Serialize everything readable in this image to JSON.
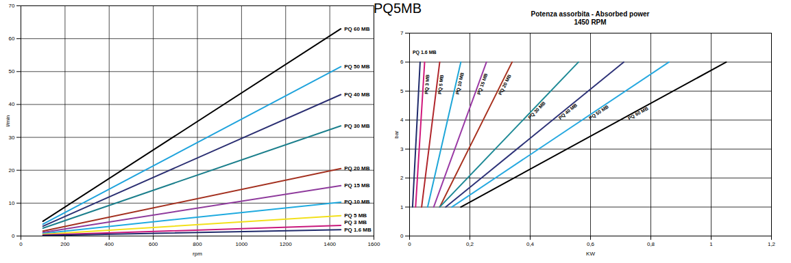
{
  "title": "PQ5MB",
  "chart_data": [
    {
      "type": "line",
      "xlabel": "rpm",
      "ylabel": "l/min",
      "xlim": [
        0,
        1600
      ],
      "xticks": [
        0,
        200,
        400,
        600,
        800,
        1000,
        1200,
        1400,
        1600
      ],
      "ylim": [
        0,
        70
      ],
      "yticks": [
        0,
        10,
        20,
        30,
        40,
        50,
        60,
        70
      ],
      "grid": true,
      "x": [
        100,
        1450
      ],
      "series": [
        {
          "name": "PQ 60 MB",
          "color": "#000000",
          "values": [
            4.5,
            63
          ]
        },
        {
          "name": "PQ 50 MB",
          "color": "#1fa3dc",
          "values": [
            3.6,
            51.5
          ]
        },
        {
          "name": "PQ 40 MB",
          "color": "#2b2f72",
          "values": [
            3.0,
            43
          ]
        },
        {
          "name": "PQ 30 MB",
          "color": "#1b7f8c",
          "values": [
            2.4,
            33.5
          ]
        },
        {
          "name": "PQ 20 MB",
          "color": "#a3301f",
          "values": [
            1.5,
            20.5
          ]
        },
        {
          "name": "PQ 15 MB",
          "color": "#8e3a9c",
          "values": [
            1.1,
            15.3
          ]
        },
        {
          "name": "PQ 10 MB",
          "color": "#1eaadf",
          "values": [
            0.8,
            10.3
          ]
        },
        {
          "name": "PQ 5 MB",
          "color": "#f2e01a",
          "values": [
            0.5,
            6.2
          ]
        },
        {
          "name": "PQ 3 MB",
          "color": "#c8187c",
          "values": [
            0.3,
            3.2
          ]
        },
        {
          "name": "PQ 1.6 MB",
          "color": "#1f2a6b",
          "values": [
            0.15,
            1.9
          ]
        }
      ]
    },
    {
      "type": "line",
      "title": "Potenza assorbita - Absorbed power",
      "subtitle": "1450 RPM",
      "xlabel": "KW",
      "ylabel": "bar",
      "xlim": [
        0,
        1.2
      ],
      "xticks": [
        0,
        {
          "value": 0.2,
          "label": "0,2"
        },
        {
          "value": 0.4,
          "label": "0,4"
        },
        {
          "value": 0.6,
          "label": "0,6"
        },
        {
          "value": 0.8,
          "label": "0,8"
        },
        1,
        {
          "value": 1.2,
          "label": "1,2"
        }
      ],
      "ylim": [
        0,
        7
      ],
      "yticks": [
        0,
        1,
        2,
        3,
        4,
        5,
        6,
        7
      ],
      "grid": true,
      "series": [
        {
          "name": "PQ 1.6 MB",
          "color": "#1f2a6b",
          "x": [
            0.01,
            0.035
          ],
          "values": [
            1,
            6
          ]
        },
        {
          "name": "PQ 3 MB",
          "color": "#d0187c",
          "x": [
            0.02,
            0.05
          ],
          "values": [
            1,
            6
          ]
        },
        {
          "name": "PQ 5 MB",
          "color": "#b0262b",
          "x": [
            0.04,
            0.1
          ],
          "values": [
            1,
            6
          ]
        },
        {
          "name": "PQ 10 MB",
          "color": "#1ea6d8",
          "x": [
            0.06,
            0.17
          ],
          "values": [
            1,
            6
          ]
        },
        {
          "name": "PQ 15 MB",
          "color": "#9a3aa5",
          "x": [
            0.08,
            0.255
          ],
          "values": [
            1,
            6
          ]
        },
        {
          "name": "PQ 20 MB",
          "color": "#a8321f",
          "x": [
            0.1,
            0.34
          ],
          "values": [
            1,
            6
          ]
        },
        {
          "name": "PQ 30 MB",
          "color": "#1f8a96",
          "x": [
            0.1,
            0.56
          ],
          "values": [
            1,
            6
          ]
        },
        {
          "name": "PQ 40 MB",
          "color": "#2e3378",
          "x": [
            0.12,
            0.71
          ],
          "values": [
            1,
            6
          ]
        },
        {
          "name": "PQ 50 MB",
          "color": "#27a9e0",
          "x": [
            0.14,
            0.86
          ],
          "values": [
            1,
            6
          ]
        },
        {
          "name": "PQ 60 MB",
          "color": "#000000",
          "x": [
            0.17,
            1.05
          ],
          "values": [
            1,
            6
          ]
        }
      ]
    }
  ]
}
